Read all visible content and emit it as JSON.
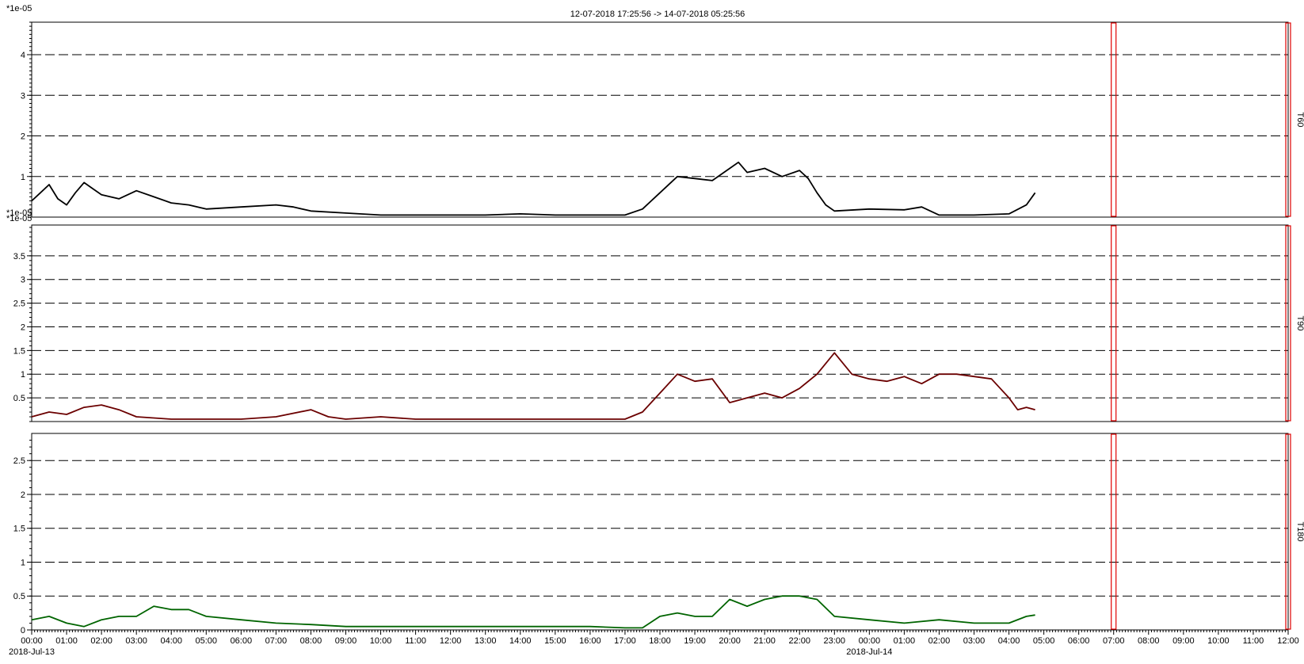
{
  "header": {
    "title": "12-07-2018 17:25:56 -> 14-07-2018 05:25:56"
  },
  "x_axis": {
    "ticks": [
      "00:00",
      "01:00",
      "02:00",
      "03:00",
      "04:00",
      "05:00",
      "06:00",
      "07:00",
      "08:00",
      "09:00",
      "10:00",
      "11:00",
      "12:00",
      "13:00",
      "14:00",
      "15:00",
      "16:00",
      "17:00",
      "18:00",
      "19:00",
      "20:00",
      "21:00",
      "22:00",
      "23:00",
      "00:00",
      "01:00",
      "02:00",
      "03:00",
      "04:00",
      "05:00",
      "06:00",
      "07:00",
      "08:00",
      "09:00",
      "10:00",
      "11:00",
      "12:00"
    ],
    "date_labels": [
      {
        "text": "2018-Jul-13",
        "at_hour": 0
      },
      {
        "text": "2018-Jul-14",
        "at_hour": 24
      }
    ],
    "unit": "hours from 2018-07-13 00:00",
    "range": [
      0,
      36
    ]
  },
  "markers": {
    "color": "#e00000",
    "at_hours": [
      31,
      36
    ]
  },
  "chart_data": [
    {
      "type": "line",
      "series": [
        {
          "name": "T60",
          "color": "#000000",
          "x": [
            0,
            0.25,
            0.5,
            0.75,
            1,
            1.25,
            1.5,
            1.75,
            2,
            2.5,
            3,
            3.5,
            4,
            4.5,
            5,
            6,
            7,
            7.5,
            8,
            9,
            10,
            11,
            12,
            13,
            14,
            15,
            16,
            17,
            17.5,
            18,
            18.5,
            19,
            19.5,
            20,
            20.25,
            20.5,
            21,
            21.5,
            22,
            22.25,
            22.5,
            22.75,
            23,
            24,
            25,
            25.5,
            26,
            27,
            28,
            28.5,
            28.75
          ],
          "values": [
            0.4,
            0.6,
            0.8,
            0.45,
            0.3,
            0.6,
            0.85,
            0.7,
            0.55,
            0.45,
            0.65,
            0.5,
            0.35,
            0.3,
            0.2,
            0.25,
            0.3,
            0.25,
            0.15,
            0.1,
            0.05,
            0.05,
            0.05,
            0.05,
            0.08,
            0.05,
            0.05,
            0.05,
            0.2,
            0.6,
            1.0,
            0.95,
            0.9,
            1.2,
            1.35,
            1.1,
            1.2,
            1.0,
            1.15,
            0.95,
            0.6,
            0.3,
            0.15,
            0.2,
            0.18,
            0.25,
            0.05,
            0.05,
            0.08,
            0.3,
            0.6
          ]
        }
      ],
      "xlabel": "",
      "ylabel": "",
      "multiplier_label": "*1e-05",
      "ylim": [
        0,
        4.8
      ],
      "ytick_labels": [
        "1",
        "2",
        "3",
        "4"
      ],
      "grid": true,
      "side_label": "T60"
    },
    {
      "type": "line",
      "series": [
        {
          "name": "T90",
          "color": "#6b0000",
          "x": [
            0,
            0.5,
            1,
            1.5,
            2,
            2.5,
            3,
            4,
            5,
            6,
            7,
            8,
            8.5,
            9,
            10,
            11,
            12,
            13,
            14,
            15,
            16,
            17,
            17.5,
            18,
            18.5,
            19,
            19.5,
            20,
            20.5,
            21,
            21.5,
            22,
            22.5,
            23,
            23.5,
            24,
            24.5,
            25,
            25.5,
            26,
            26.5,
            27,
            27.5,
            28,
            28.25,
            28.5,
            28.75
          ],
          "values": [
            0.1,
            0.2,
            0.15,
            0.3,
            0.35,
            0.25,
            0.1,
            0.05,
            0.05,
            0.05,
            0.1,
            0.25,
            0.1,
            0.05,
            0.1,
            0.05,
            0.05,
            0.05,
            0.05,
            0.05,
            0.05,
            0.05,
            0.2,
            0.6,
            1.0,
            0.85,
            0.9,
            0.4,
            0.5,
            0.6,
            0.5,
            0.7,
            1.0,
            1.45,
            1.0,
            0.9,
            0.85,
            0.95,
            0.8,
            1.0,
            1.0,
            0.95,
            0.9,
            0.5,
            0.25,
            0.3,
            0.25
          ]
        }
      ],
      "xlabel": "",
      "ylabel": "",
      "multiplier_label": "*1e-05",
      "ylim": [
        0,
        4.15
      ],
      "ytick_labels": [
        "0.5",
        "1",
        "1.5",
        "2",
        "2.5",
        "3",
        "3.5"
      ],
      "grid": true,
      "side_label": "T90"
    },
    {
      "type": "line",
      "series": [
        {
          "name": "T180",
          "color": "#006400",
          "x": [
            0,
            0.5,
            1,
            1.5,
            2,
            2.5,
            3,
            3.5,
            4,
            4.5,
            5,
            6,
            7,
            8,
            9,
            10,
            11,
            12,
            13,
            14,
            15,
            16,
            17,
            17.5,
            18,
            18.5,
            19,
            19.5,
            20,
            20.5,
            21,
            21.5,
            22,
            22.5,
            23,
            24,
            25,
            26,
            27,
            28,
            28.5,
            28.75
          ],
          "values": [
            0.15,
            0.2,
            0.1,
            0.05,
            0.15,
            0.2,
            0.2,
            0.35,
            0.3,
            0.3,
            0.2,
            0.15,
            0.1,
            0.08,
            0.05,
            0.05,
            0.05,
            0.05,
            0.05,
            0.05,
            0.05,
            0.05,
            0.03,
            0.03,
            0.2,
            0.25,
            0.2,
            0.2,
            0.45,
            0.35,
            0.45,
            0.5,
            0.5,
            0.45,
            0.2,
            0.15,
            0.1,
            0.15,
            0.1,
            0.1,
            0.2,
            0.22
          ]
        }
      ],
      "xlabel": "",
      "ylabel": "",
      "multiplier_label": "",
      "ylim": [
        0,
        2.9
      ],
      "ytick_labels": [
        "0",
        "0.5",
        "1",
        "1.5",
        "2",
        "2.5"
      ],
      "grid": true,
      "side_label": "T180"
    }
  ]
}
